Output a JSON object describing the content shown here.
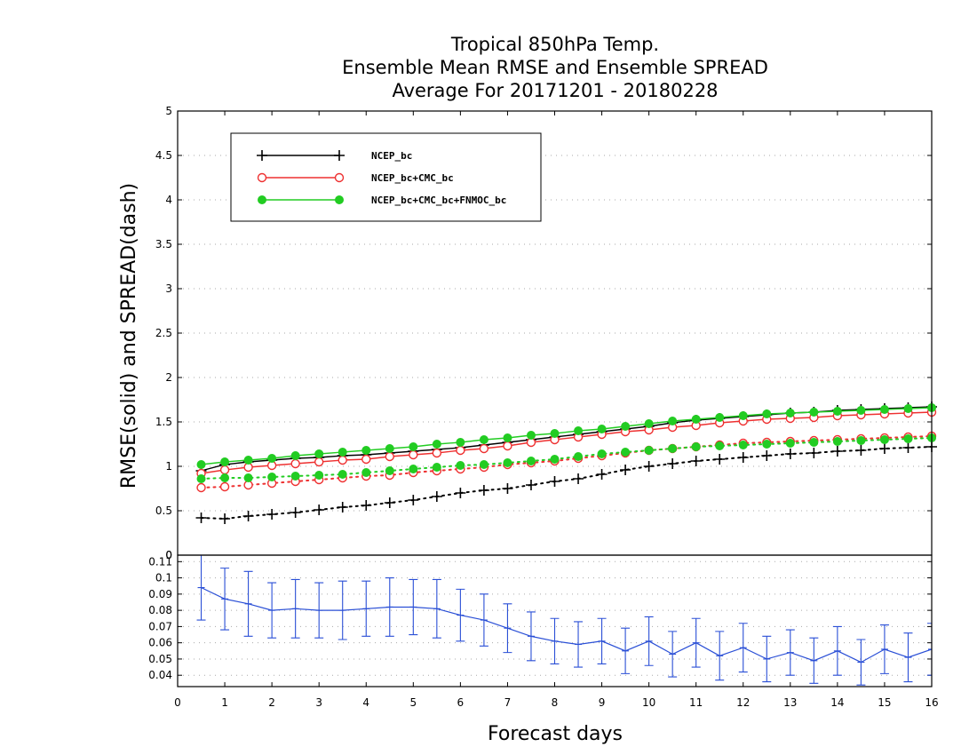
{
  "chart_data": [
    {
      "type": "line",
      "title": [
        "Tropical 850hPa Temp.",
        "Ensemble Mean RMSE and Ensemble SPREAD",
        "Average For 20171201 - 20180228"
      ],
      "ylabel": "RMSE(solid)  and  SPREAD(dash)",
      "xlim": [
        0,
        16
      ],
      "ylim": [
        0,
        5
      ],
      "yticks": [
        "0",
        "0.5",
        "1",
        "1.5",
        "2",
        "2.5",
        "3",
        "3.5",
        "4",
        "4.5",
        "5"
      ],
      "grid": true,
      "legend_position": "top-left",
      "x": [
        0.5,
        1,
        1.5,
        2,
        2.5,
        3,
        3.5,
        4,
        4.5,
        5,
        5.5,
        6,
        6.5,
        7,
        7.5,
        8,
        8.5,
        9,
        9.5,
        10,
        10.5,
        11,
        11.5,
        12,
        12.5,
        13,
        13.5,
        14,
        14.5,
        15,
        15.5,
        16
      ],
      "series": [
        {
          "name": "NCEP_bc",
          "color": "#000000",
          "marker": "plus",
          "rmse": [
            0.95,
            1.02,
            1.05,
            1.07,
            1.09,
            1.1,
            1.12,
            1.13,
            1.15,
            1.17,
            1.19,
            1.21,
            1.24,
            1.27,
            1.3,
            1.33,
            1.36,
            1.39,
            1.42,
            1.45,
            1.49,
            1.52,
            1.54,
            1.56,
            1.58,
            1.6,
            1.61,
            1.63,
            1.64,
            1.65,
            1.66,
            1.67
          ],
          "spread": [
            0.42,
            0.41,
            0.44,
            0.46,
            0.48,
            0.51,
            0.54,
            0.56,
            0.59,
            0.62,
            0.66,
            0.7,
            0.73,
            0.75,
            0.79,
            0.83,
            0.86,
            0.91,
            0.96,
            1.0,
            1.03,
            1.06,
            1.08,
            1.1,
            1.12,
            1.14,
            1.15,
            1.17,
            1.18,
            1.2,
            1.21,
            1.22
          ]
        },
        {
          "name": "NCEP_bc+CMC_bc",
          "color": "#ee3030",
          "marker": "open-circle",
          "rmse": [
            0.92,
            0.96,
            0.99,
            1.01,
            1.03,
            1.05,
            1.07,
            1.08,
            1.11,
            1.13,
            1.15,
            1.18,
            1.2,
            1.23,
            1.27,
            1.3,
            1.33,
            1.36,
            1.39,
            1.41,
            1.44,
            1.46,
            1.49,
            1.51,
            1.53,
            1.54,
            1.55,
            1.57,
            1.58,
            1.59,
            1.6,
            1.61
          ],
          "spread": [
            0.76,
            0.77,
            0.79,
            0.81,
            0.83,
            0.85,
            0.87,
            0.89,
            0.9,
            0.93,
            0.95,
            0.97,
            0.99,
            1.02,
            1.04,
            1.06,
            1.09,
            1.12,
            1.15,
            1.18,
            1.2,
            1.22,
            1.24,
            1.26,
            1.27,
            1.28,
            1.29,
            1.3,
            1.31,
            1.32,
            1.33,
            1.34
          ]
        },
        {
          "name": "NCEP_bc+CMC_bc+FNMOC_bc",
          "color": "#22cc22",
          "marker": "filled-circle",
          "rmse": [
            1.02,
            1.05,
            1.07,
            1.09,
            1.12,
            1.14,
            1.16,
            1.18,
            1.2,
            1.22,
            1.25,
            1.27,
            1.3,
            1.32,
            1.35,
            1.37,
            1.4,
            1.42,
            1.45,
            1.48,
            1.51,
            1.53,
            1.55,
            1.57,
            1.59,
            1.6,
            1.61,
            1.62,
            1.63,
            1.64,
            1.65,
            1.66
          ],
          "spread": [
            0.86,
            0.87,
            0.87,
            0.88,
            0.89,
            0.9,
            0.91,
            0.93,
            0.95,
            0.97,
            0.99,
            1.01,
            1.02,
            1.04,
            1.06,
            1.08,
            1.11,
            1.14,
            1.16,
            1.18,
            1.2,
            1.22,
            1.23,
            1.24,
            1.25,
            1.26,
            1.27,
            1.28,
            1.29,
            1.3,
            1.31,
            1.32
          ]
        }
      ]
    },
    {
      "type": "line",
      "xlabel": "Forecast days",
      "xlim": [
        0,
        16
      ],
      "ylim": [
        0.033,
        0.114
      ],
      "xticks": [
        "0",
        "1",
        "2",
        "3",
        "4",
        "5",
        "6",
        "7",
        "8",
        "9",
        "10",
        "11",
        "12",
        "13",
        "14",
        "15",
        "16"
      ],
      "yticks": [
        "0.04",
        "0.05",
        "0.06",
        "0.07",
        "0.08",
        "0.09",
        "0.1",
        "0.11"
      ],
      "grid": true,
      "series": [
        {
          "color": "#2a4fd6",
          "marker": "error-bar",
          "x": [
            0.5,
            1,
            1.5,
            2,
            2.5,
            3,
            3.5,
            4,
            4.5,
            5,
            5.5,
            6,
            6.5,
            7,
            7.5,
            8,
            8.5,
            9,
            9.5,
            10,
            10.5,
            11,
            11.5,
            12,
            12.5,
            13,
            13.5,
            14,
            14.5,
            15,
            15.5,
            16
          ],
          "values": [
            0.094,
            0.087,
            0.084,
            0.08,
            0.081,
            0.08,
            0.08,
            0.081,
            0.082,
            0.082,
            0.081,
            0.077,
            0.074,
            0.069,
            0.064,
            0.061,
            0.059,
            0.061,
            0.055,
            0.061,
            0.053,
            0.06,
            0.052,
            0.057,
            0.05,
            0.054,
            0.049,
            0.055,
            0.048,
            0.056,
            0.051,
            0.056
          ],
          "error": [
            0.02,
            0.019,
            0.02,
            0.017,
            0.018,
            0.017,
            0.018,
            0.017,
            0.018,
            0.017,
            0.018,
            0.016,
            0.016,
            0.015,
            0.015,
            0.014,
            0.014,
            0.014,
            0.014,
            0.015,
            0.014,
            0.015,
            0.015,
            0.015,
            0.014,
            0.014,
            0.014,
            0.015,
            0.014,
            0.015,
            0.015,
            0.016
          ]
        }
      ]
    }
  ]
}
